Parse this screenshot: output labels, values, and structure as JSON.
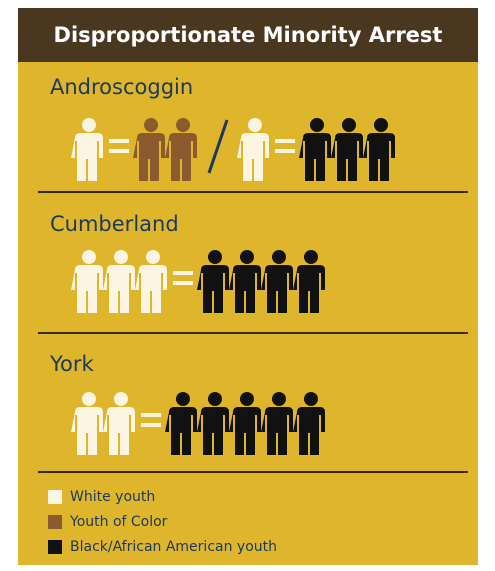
{
  "header": {
    "title": "Disproportionate Minority Arrest"
  },
  "sections": [
    {
      "name": "Androscoggin",
      "equations": [
        {
          "left": {
            "count": 1,
            "color": "#fbf5e2"
          },
          "right": {
            "count": 2,
            "color": "#8b5a2e"
          }
        },
        {
          "left": {
            "count": 1,
            "color": "#fbf5e2"
          },
          "right": {
            "count": 3,
            "color": "#111111"
          }
        }
      ]
    },
    {
      "name": "Cumberland",
      "equations": [
        {
          "left": {
            "count": 3,
            "color": "#fbf5e2"
          },
          "right": {
            "count": 4,
            "color": "#111111"
          }
        }
      ]
    },
    {
      "name": "York",
      "equations": [
        {
          "left": {
            "count": 2,
            "color": "#fbf5e2"
          },
          "right": {
            "count": 5,
            "color": "#111111"
          }
        }
      ]
    }
  ],
  "legend": [
    {
      "label": "White youth",
      "color": "#fbf5e2"
    },
    {
      "label": "Youth of Color",
      "color": "#8b5a2e"
    },
    {
      "label": "Black/African American youth",
      "color": "#111111"
    }
  ]
}
